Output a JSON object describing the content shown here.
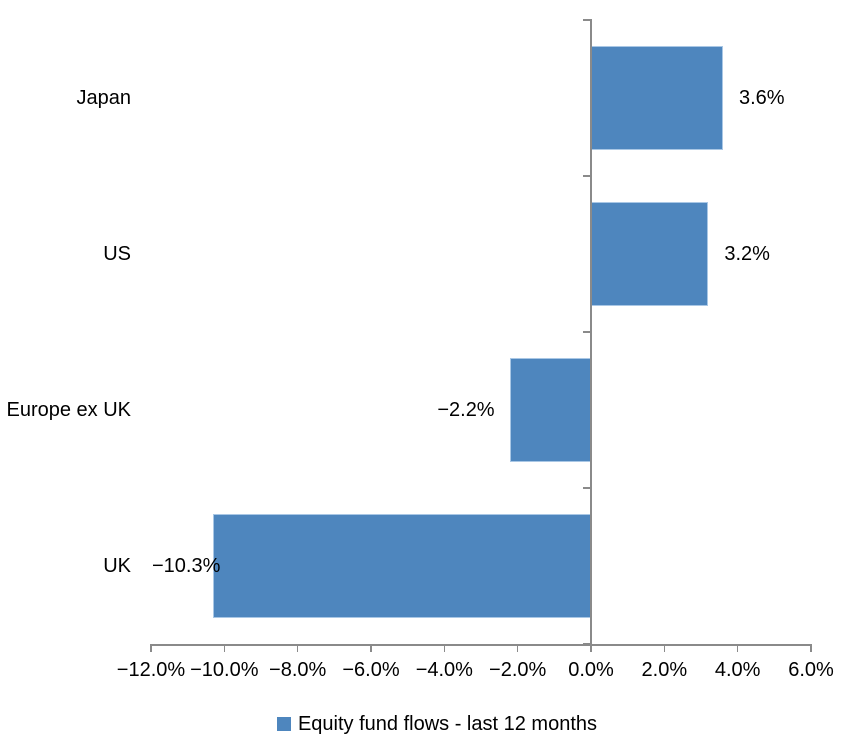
{
  "chart_data": {
    "type": "bar",
    "orientation": "horizontal",
    "title": "",
    "categories": [
      "Japan",
      "US",
      "Europe ex UK",
      "UK"
    ],
    "values": [
      3.6,
      3.2,
      -2.2,
      -10.3
    ],
    "data_labels": [
      "3.6%",
      "3.2%",
      "−2.2%",
      "−10.3%"
    ],
    "series_name": "Equity fund flows - last 12 months",
    "x_ticks": [
      "−12.0%",
      "−10.0%",
      "−8.0%",
      "−6.0%",
      "−4.0%",
      "−2.0%",
      "0.0%",
      "2.0%",
      "4.0%",
      "6.0%"
    ],
    "x_tick_values": [
      -12,
      -10,
      -8,
      -6,
      -4,
      -2,
      0,
      2,
      4,
      6
    ],
    "xlim": [
      -12,
      6
    ],
    "grid": false,
    "legend_position": "bottom",
    "bar_color": "#4E86BE",
    "bar_border_color": "#A9C7E5",
    "axis_color": "#8A8A8A",
    "text_color": "#000000"
  }
}
